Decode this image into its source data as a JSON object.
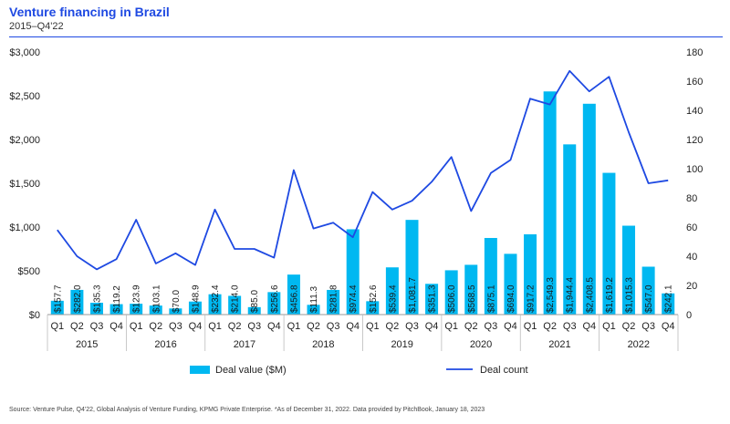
{
  "header": {
    "title": "Venture financing in Brazil",
    "subtitle": "2015–Q4'22"
  },
  "footer": {
    "source": "Source: Venture Pulse, Q4'22, Global Analysis of Venture Funding, KPMG Private Enterprise. *As of December 31, 2022. Data provided by PitchBook, January 18, 2023"
  },
  "colors": {
    "bar": "#00b8f1",
    "line": "#1e49e2",
    "title": "#1e49e2"
  },
  "chart_data": {
    "type": "bar",
    "categories": [
      "Q1",
      "Q2",
      "Q3",
      "Q4",
      "Q1",
      "Q2",
      "Q3",
      "Q4",
      "Q1",
      "Q2",
      "Q3",
      "Q4",
      "Q1",
      "Q2",
      "Q3",
      "Q4",
      "Q1",
      "Q2",
      "Q3",
      "Q4",
      "Q1",
      "Q2",
      "Q3",
      "Q4",
      "Q1",
      "Q2",
      "Q3",
      "Q4",
      "Q1",
      "Q2",
      "Q3",
      "Q4"
    ],
    "years": [
      "2015",
      "2016",
      "2017",
      "2018",
      "2019",
      "2020",
      "2021",
      "2022"
    ],
    "series": [
      {
        "name": "Deal value ($M)",
        "type": "bar",
        "axis": "left",
        "values": [
          157.7,
          282.0,
          135.3,
          119.2,
          123.9,
          103.1,
          70.0,
          148.9,
          232.4,
          214.0,
          85.0,
          256.6,
          456.8,
          111.3,
          281.8,
          974.4,
          152.6,
          539.4,
          1081.7,
          351.3,
          506.0,
          568.5,
          875.1,
          694.0,
          917.2,
          2549.3,
          1944.4,
          2408.5,
          1619.2,
          1015.3,
          547.0,
          242.1
        ],
        "labels": [
          "$157.7",
          "$282.0",
          "$135.3",
          "$119.2",
          "$123.9",
          "$103.1",
          "$70.0",
          "$148.9",
          "$232.4",
          "$214.0",
          "$85.0",
          "$256.6",
          "$456.8",
          "$111.3",
          "$281.8",
          "$974.4",
          "$152.6",
          "$539.4",
          "$1,081.7",
          "$351.3",
          "$506.0",
          "$568.5",
          "$875.1",
          "$694.0",
          "$917.2",
          "$2,549.3",
          "$1,944.4",
          "$2,408.5",
          "$1,619.2",
          "$1,015.3",
          "$547.0",
          "$242.1"
        ]
      },
      {
        "name": "Deal count",
        "type": "line",
        "axis": "right",
        "values": [
          58,
          40,
          31,
          38,
          65,
          35,
          42,
          34,
          72,
          45,
          45,
          39,
          99,
          59,
          63,
          53,
          84,
          72,
          78,
          91,
          108,
          71,
          97,
          106,
          148,
          144,
          167,
          153,
          163,
          125,
          90,
          92
        ]
      }
    ],
    "y_left": {
      "ticks": [
        "$0",
        "$500",
        "$1,000",
        "$1,500",
        "$2,000",
        "$2,500",
        "$3,000"
      ],
      "range": [
        0,
        3000
      ]
    },
    "y_right": {
      "ticks": [
        "0",
        "20",
        "40",
        "60",
        "80",
        "100",
        "120",
        "140",
        "160",
        "180"
      ],
      "range": [
        0,
        180
      ]
    },
    "legend_position": "bottom",
    "grid": false
  }
}
